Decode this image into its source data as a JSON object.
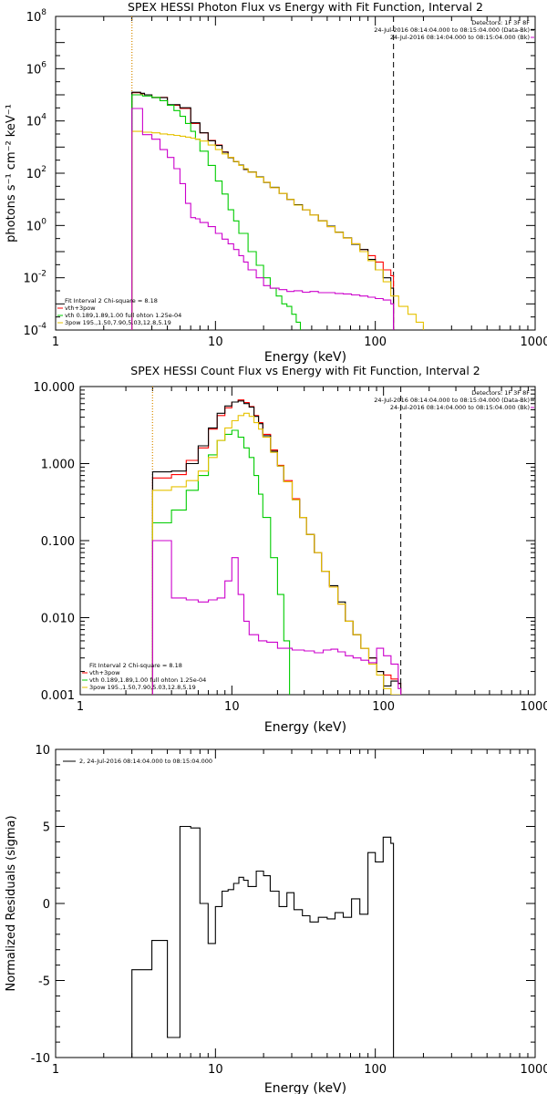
{
  "chart_data": [
    {
      "type": "line",
      "title": "SPEX HESSI Photon Flux vs Energy with Fit Function, Interval 2",
      "xlabel": "Energy (keV)",
      "ylabel": "photons s⁻¹ cm⁻² keV⁻¹",
      "xscale": "log",
      "yscale": "log",
      "xlim": [
        1,
        1000
      ],
      "ylim": [
        0.0001,
        100000000
      ],
      "xtick_labels": [
        "1",
        "10",
        "100",
        "1000"
      ],
      "ytick_values": [
        0.0001,
        0.01,
        1,
        100,
        10000,
        1000000,
        100000000
      ],
      "ytick_labels": [
        {
          "base": "10",
          "exp": "-4"
        },
        {
          "base": "10",
          "exp": "-2"
        },
        {
          "base": "10",
          "exp": "0"
        },
        {
          "base": "10",
          "exp": "2"
        },
        {
          "base": "10",
          "exp": "4"
        },
        {
          "base": "10",
          "exp": "6"
        },
        {
          "base": "10",
          "exp": "8"
        }
      ],
      "vlines": [
        {
          "x": 3.0,
          "style": "dotted",
          "color": "#000000"
        },
        {
          "x": 3.0,
          "style": "dotted",
          "color": "#ffa500"
        },
        {
          "x": 130,
          "style": "dashed",
          "color": "#000000"
        }
      ],
      "info_lines": [
        "Detectors: 1F 3F 8F",
        "24-Jul-2016 08:14:04.000 to 08:15:04.000 (Data-Bk)",
        "24-Jul-2016 08:14:04.000 to 08:15:04.000 (Bk)"
      ],
      "info_colors": [
        "#000000",
        "#000000",
        "#cc00cc"
      ],
      "legend_lines": [
        "Fit Interval 2   Chi-square = 8.18",
        "vth+3pow",
        "vth 0.189,1.89,1.00  full ohton 1.25e-04",
        "3pow 195.,1.50,7.90,5.03,12.8,5.19"
      ],
      "legend_colors": [
        "#000000",
        "#ff0000",
        "#00cc00",
        "#e6c200"
      ],
      "series": [
        {
          "name": "vth+3pow",
          "color": "#ff0000",
          "edges": [
            3.0,
            3.2,
            3.4,
            3.6,
            4.0,
            5.0,
            6.0,
            7.0,
            8.0,
            9.0,
            10.0,
            11.0,
            12.0,
            13.0,
            14.0,
            15.0,
            16.0,
            18.0,
            20.0,
            22.0,
            25.0,
            28.0,
            31.0,
            35.0,
            39.0,
            44.0,
            50.0,
            56.0,
            63.0,
            71.0,
            80.0,
            90.0,
            100.0,
            112.0,
            125.0,
            130.0
          ],
          "values": [
            120000,
            120000,
            110000,
            100000,
            80000,
            40000,
            30000,
            8000,
            3500,
            1800,
            1200,
            650,
            400,
            280,
            200,
            140,
            110,
            70,
            45,
            28,
            17,
            10,
            6,
            4,
            2.5,
            1.5,
            0.9,
            0.55,
            0.33,
            0.2,
            0.12,
            0.07,
            0.04,
            0.02,
            0.012
          ]
        },
        {
          "name": "data",
          "color": "#000000",
          "edges": [
            3.0,
            3.2,
            3.4,
            3.6,
            4.0,
            5.0,
            6.0,
            7.0,
            8.0,
            9.0,
            10.0,
            11.0,
            12.0,
            13.0,
            14.0,
            15.0,
            16.0,
            18.0,
            20.0,
            22.0,
            25.0,
            28.0,
            31.0,
            35.0,
            39.0,
            44.0,
            50.0,
            56.0,
            63.0,
            71.0,
            80.0,
            90.0,
            100.0,
            112.0,
            125.0,
            130.0
          ],
          "values": [
            125000,
            125000,
            115000,
            100000,
            78000,
            42000,
            32000,
            8500,
            3500,
            1750,
            1150,
            640,
            390,
            275,
            205,
            140,
            112,
            72,
            44,
            29,
            17,
            10,
            6.2,
            4,
            2.5,
            1.5,
            0.95,
            0.56,
            0.34,
            0.19,
            0.12,
            0.05,
            0.02,
            0.01,
            0.004
          ]
        },
        {
          "name": "vth",
          "color": "#00cc00",
          "edges": [
            3.0,
            3.5,
            4.0,
            4.5,
            5.0,
            5.5,
            6.0,
            6.5,
            7.0,
            7.5,
            8.0,
            9.0,
            10.0,
            11.0,
            12.0,
            13.0,
            14.0,
            16.0,
            18.0,
            20.0,
            22.0,
            24.0,
            26.0,
            28.0,
            30.0,
            32.0,
            34.0
          ],
          "values": [
            100000,
            90000,
            80000,
            60000,
            40000,
            25000,
            15000,
            8000,
            4000,
            2000,
            700,
            200,
            50,
            16,
            4,
            1.5,
            0.5,
            0.1,
            0.03,
            0.01,
            0.004,
            0.002,
            0.001,
            0.0008,
            0.0004,
            0.0002
          ]
        },
        {
          "name": "3pow",
          "color": "#e6c200",
          "edges": [
            3.0,
            3.5,
            4.0,
            4.5,
            5.0,
            5.5,
            6.0,
            6.5,
            7.0,
            7.5,
            8.0,
            9.0,
            10.0,
            11.0,
            12.0,
            13.0,
            14.0,
            15.0,
            16.0,
            18.0,
            20.0,
            22.0,
            25.0,
            28.0,
            31.0,
            35.0,
            39.0,
            44.0,
            50.0,
            56.0,
            63.0,
            71.0,
            80.0,
            90.0,
            100.0,
            112.0,
            125.0,
            140.0,
            160.0,
            180.0,
            200.0
          ],
          "values": [
            4000,
            3700,
            3500,
            3200,
            3000,
            2800,
            2600,
            2400,
            2200,
            2000,
            1700,
            1200,
            800,
            550,
            400,
            280,
            200,
            150,
            110,
            70,
            45,
            28,
            17,
            10,
            6,
            4,
            2.5,
            1.5,
            0.9,
            0.55,
            0.33,
            0.2,
            0.1,
            0.045,
            0.02,
            0.007,
            0.002,
            0.0008,
            0.0004,
            0.0002
          ]
        },
        {
          "name": "background",
          "color": "#cc00cc",
          "edges": [
            3.0,
            3.5,
            4.0,
            4.5,
            5.0,
            5.5,
            6.0,
            6.5,
            7.0,
            7.5,
            8.0,
            9.0,
            10.0,
            11.0,
            12.0,
            13.0,
            14.0,
            15.0,
            16.0,
            18.0,
            20.0,
            22.0,
            25.0,
            28.0,
            31.0,
            35.0,
            39.0,
            44.0,
            50.0,
            56.0,
            63.0,
            71.0,
            80.0,
            90.0,
            100.0,
            112.0,
            125.0,
            130.0
          ],
          "values": [
            30000,
            3000,
            2000,
            800,
            400,
            150,
            40,
            7,
            2,
            1.8,
            1.3,
            0.9,
            0.5,
            0.3,
            0.2,
            0.12,
            0.07,
            0.04,
            0.02,
            0.01,
            0.005,
            0.004,
            0.0035,
            0.003,
            0.0032,
            0.0028,
            0.003,
            0.0027,
            0.0027,
            0.0025,
            0.0024,
            0.0022,
            0.002,
            0.0018,
            0.0016,
            0.0014,
            0.001
          ]
        }
      ]
    },
    {
      "type": "line",
      "title": "SPEX HESSI Count Flux vs Energy with Fit Function, Interval 2",
      "xlabel": "Energy (keV)",
      "ylabel": "",
      "xscale": "log",
      "yscale": "log",
      "xlim": [
        1,
        1000
      ],
      "ylim": [
        0.001,
        10
      ],
      "xtick_labels": [
        "1",
        "10",
        "100",
        "1000"
      ],
      "ytick_values": [
        0.001,
        0.01,
        0.1,
        1,
        10
      ],
      "ytick_labels": [
        {
          "base": "0.001",
          "exp": ""
        },
        {
          "base": "0.010",
          "exp": ""
        },
        {
          "base": "0.100",
          "exp": ""
        },
        {
          "base": "1.000",
          "exp": ""
        },
        {
          "base": "10.000",
          "exp": ""
        }
      ],
      "vlines": [
        {
          "x": 3.0,
          "style": "dotted",
          "color": "#000000"
        },
        {
          "x": 3.0,
          "style": "dotted",
          "color": "#ffa500"
        },
        {
          "x": 130,
          "style": "dashed",
          "color": "#000000"
        }
      ],
      "info_lines": [
        "Detectors: 1F 3F 8F",
        "24-Jul-2016 08:14:04.000 to 08:15:04.000 (Data-Bk)",
        "24-Jul-2016 08:14:04.000 to 08:15:04.000 (Bk)"
      ],
      "info_colors": [
        "#000000",
        "#000000",
        "#cc00cc"
      ],
      "legend_lines": [
        "Fit Interval 2   Chi-square = 8.18",
        "vth+3pow",
        "vth 0.189,1.89,1.00  full ohton 1.25e-04",
        "3pow 195.,1.50,7.90,5.03,12.8,5.19"
      ],
      "legend_colors": [
        "#000000",
        "#ff0000",
        "#00cc00",
        "#e6c200"
      ],
      "series": [
        {
          "name": "vth+3pow",
          "color": "#ff0000",
          "edges": [
            3.0,
            4.0,
            5.0,
            6.0,
            7.0,
            8.0,
            9.0,
            10.0,
            11.0,
            12.0,
            13.0,
            14.0,
            15.0,
            16.0,
            18.0,
            20.0,
            22.0,
            25.0,
            28.0,
            31.0,
            35.0,
            39.0,
            44.0,
            50.0,
            56.0,
            63.0,
            71.0,
            80.0,
            90.0,
            100.0,
            112.0,
            125.0,
            130.0
          ],
          "values": [
            0.65,
            0.72,
            1.1,
            1.6,
            2.8,
            4.2,
            5.3,
            6.3,
            6.7,
            6.2,
            5.5,
            4.2,
            3.4,
            2.4,
            1.5,
            0.95,
            0.6,
            0.35,
            0.2,
            0.12,
            0.07,
            0.04,
            0.025,
            0.015,
            0.009,
            0.006,
            0.004,
            0.003,
            0.002,
            0.0018,
            0.0016,
            0.0014
          ]
        },
        {
          "name": "data",
          "color": "#000000",
          "edges": [
            3.0,
            4.0,
            5.0,
            6.0,
            7.0,
            8.0,
            9.0,
            10.0,
            11.0,
            12.0,
            13.0,
            14.0,
            15.0,
            16.0,
            18.0,
            20.0,
            22.0,
            25.0,
            28.0,
            31.0,
            35.0,
            39.0,
            44.0,
            50.0,
            56.0,
            63.0,
            71.0,
            80.0,
            90.0,
            100.0,
            112.0,
            125.0,
            130.0
          ],
          "values": [
            0.78,
            0.8,
            1.0,
            1.7,
            2.9,
            4.5,
            5.6,
            6.3,
            6.5,
            6.0,
            5.4,
            4.1,
            3.3,
            2.3,
            1.45,
            0.93,
            0.58,
            0.34,
            0.2,
            0.12,
            0.07,
            0.04,
            0.026,
            0.016,
            0.009,
            0.006,
            0.004,
            0.003,
            0.002,
            0.0013,
            0.0015,
            0.0014
          ]
        },
        {
          "name": "vth",
          "color": "#00cc00",
          "edges": [
            3.0,
            4.0,
            5.0,
            6.0,
            7.0,
            8.0,
            9.0,
            10.0,
            11.0,
            12.0,
            13.0,
            14.0,
            15.0,
            16.0,
            18.0,
            20.0,
            22.0,
            24.0
          ],
          "values": [
            0.17,
            0.25,
            0.45,
            0.7,
            1.3,
            2.0,
            2.4,
            2.7,
            2.2,
            1.6,
            1.2,
            0.7,
            0.4,
            0.2,
            0.06,
            0.02,
            0.005
          ]
        },
        {
          "name": "3pow",
          "color": "#e6c200",
          "edges": [
            3.0,
            4.0,
            5.0,
            6.0,
            7.0,
            8.0,
            9.0,
            10.0,
            11.0,
            12.0,
            13.0,
            14.0,
            15.0,
            16.0,
            18.0,
            20.0,
            22.0,
            25.0,
            28.0,
            31.0,
            35.0,
            39.0,
            44.0,
            50.0,
            56.0,
            63.0,
            71.0,
            80.0,
            90.0,
            100.0,
            112.0,
            125.0,
            130.0
          ],
          "values": [
            0.45,
            0.5,
            0.6,
            0.8,
            1.2,
            2.0,
            2.9,
            3.6,
            4.2,
            4.5,
            4.1,
            3.4,
            2.8,
            2.2,
            1.4,
            0.93,
            0.58,
            0.34,
            0.2,
            0.12,
            0.07,
            0.04,
            0.025,
            0.015,
            0.009,
            0.006,
            0.004,
            0.0025,
            0.0018,
            0.0012,
            0.001,
            0.001
          ]
        },
        {
          "name": "background",
          "color": "#cc00cc",
          "edges": [
            3.0,
            4.0,
            5.0,
            6.0,
            7.0,
            8.0,
            9.0,
            10.0,
            11.0,
            12.0,
            13.0,
            15.0,
            17.0,
            20.0,
            25.0,
            30.0,
            35.0,
            40.0,
            45.0,
            50.0,
            56.0,
            63.0,
            71.0,
            80.0,
            90.0,
            100.0,
            112.0,
            125.0,
            130.0
          ],
          "values": [
            0.1,
            0.018,
            0.017,
            0.016,
            0.017,
            0.018,
            0.03,
            0.06,
            0.02,
            0.009,
            0.006,
            0.005,
            0.0048,
            0.004,
            0.0038,
            0.0037,
            0.0035,
            0.0038,
            0.0039,
            0.0036,
            0.0032,
            0.003,
            0.0028,
            0.0026,
            0.004,
            0.0032,
            0.0025,
            0.0012
          ]
        }
      ]
    },
    {
      "type": "line",
      "title": "",
      "xlabel": "Energy (keV)",
      "ylabel": "Normalized Residuals (sigma)",
      "xscale": "log",
      "yscale": "linear",
      "xlim": [
        1,
        1000
      ],
      "ylim": [
        -10,
        10
      ],
      "xtick_labels": [
        "1",
        "10",
        "100",
        "1000"
      ],
      "ytick_values": [
        -10,
        -5,
        0,
        5,
        10
      ],
      "ytick_labels": [
        {
          "base": "-10",
          "exp": ""
        },
        {
          "base": "-5",
          "exp": ""
        },
        {
          "base": "0",
          "exp": ""
        },
        {
          "base": "5",
          "exp": ""
        },
        {
          "base": "10",
          "exp": ""
        }
      ],
      "vlines": [],
      "info_lines": [],
      "info_colors": [],
      "legend_lines": [
        "2, 24-Jul-2016 08:14:04.000 to 08:15:04.000"
      ],
      "legend_colors": [
        "#000000"
      ],
      "series": [
        {
          "name": "2, 24-Jul-2016 08:14:04.000 to 08:15:04.000",
          "color": "#000000",
          "edges": [
            3.0,
            4.0,
            5.0,
            6.0,
            7.0,
            8.0,
            9.0,
            10.0,
            11.0,
            12.0,
            13.0,
            14.0,
            15.0,
            16.0,
            18.0,
            20.0,
            22.0,
            25.0,
            28.0,
            31.0,
            35.0,
            39.0,
            44.0,
            50.0,
            56.0,
            63.0,
            71.0,
            80.0,
            90.0,
            100.0,
            112.0,
            125.0,
            130.0
          ],
          "values": [
            -4.3,
            -2.4,
            -8.7,
            5.0,
            4.9,
            0.0,
            -2.6,
            -0.2,
            0.8,
            0.9,
            1.3,
            1.7,
            1.5,
            1.1,
            2.1,
            1.8,
            0.8,
            -0.2,
            0.7,
            -0.4,
            -0.8,
            -1.2,
            -0.9,
            -1.0,
            -0.6,
            -0.9,
            0.3,
            -0.7,
            3.3,
            2.7,
            4.3,
            3.9
          ]
        }
      ]
    }
  ]
}
